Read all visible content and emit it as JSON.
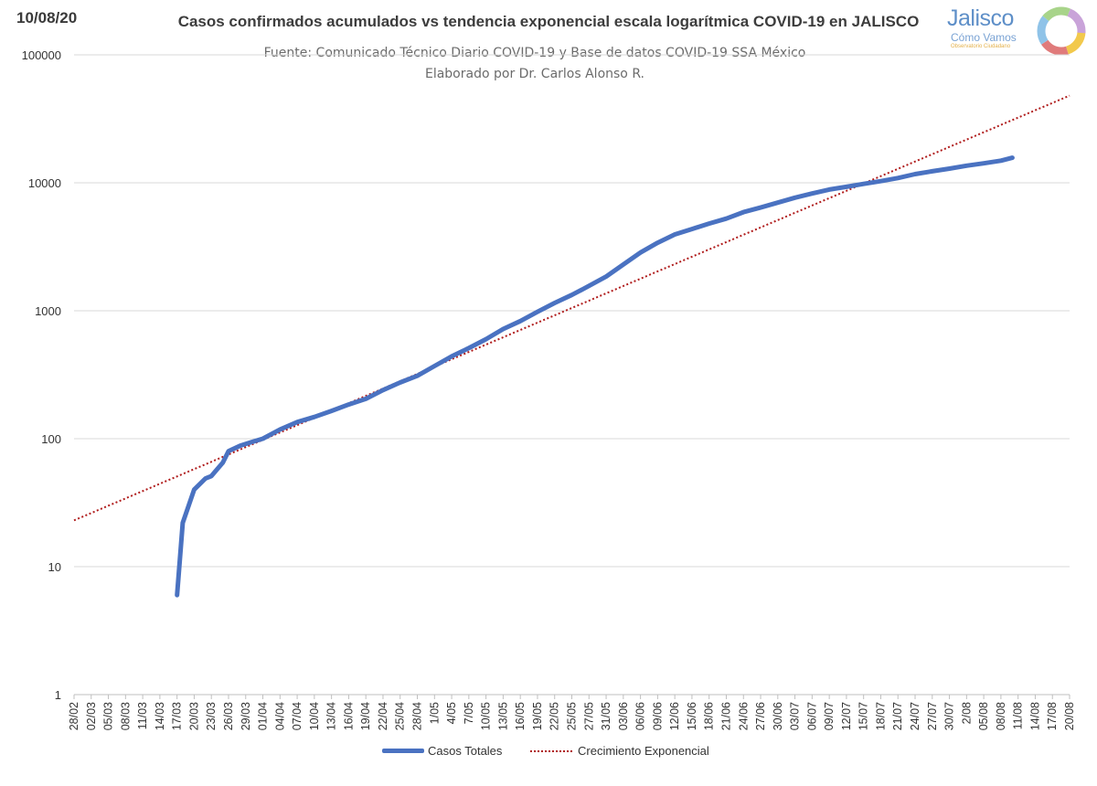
{
  "header": {
    "date": "10/08/20",
    "title": "Casos confirmados acumulados vs tendencia exponencial escala logarítmica COVID-19 en JALISCO",
    "subtitle_line1": "Fuente: Comunicado Técnico Diario COVID-19 y Base de datos COVID-19 SSA México",
    "subtitle_line2": "Elaborado por Dr. Carlos Alonso R."
  },
  "logo": {
    "name": "Jalisco",
    "tagline": "Cómo Vamos",
    "subline": "Observatorio Ciudadano"
  },
  "chart_data": {
    "type": "line",
    "yscale": "log",
    "ylim": [
      1,
      100000
    ],
    "yticks": [
      1,
      10,
      100,
      1000,
      10000,
      100000
    ],
    "ytick_labels": [
      "1",
      "10",
      "100",
      "1000",
      "10000",
      "100000"
    ],
    "grid": true,
    "legend_position": "bottom",
    "x_ticks": [
      "28/02",
      "02/03",
      "05/03",
      "08/03",
      "11/03",
      "14/03",
      "17/03",
      "20/03",
      "23/03",
      "26/03",
      "29/03",
      "01/04",
      "04/04",
      "07/04",
      "10/04",
      "13/04",
      "16/04",
      "19/04",
      "22/04",
      "25/04",
      "28/04",
      "1/05",
      "4/05",
      "7/05",
      "10/05",
      "13/05",
      "16/05",
      "19/05",
      "22/05",
      "25/05",
      "27/05",
      "31/05",
      "03/06",
      "06/06",
      "09/06",
      "12/06",
      "15/06",
      "18/06",
      "21/06",
      "24/06",
      "27/06",
      "30/06",
      "03/07",
      "06/07",
      "09/07",
      "12/07",
      "15/07",
      "18/07",
      "21/07",
      "24/07",
      "27/07",
      "30/07",
      "2/08",
      "05/08",
      "08/08",
      "11/08",
      "14/08",
      "17/08",
      "20/08"
    ],
    "series": [
      {
        "name": "Casos Totales",
        "color": "#4a72c1",
        "style": "solid",
        "x": [
          "17/03",
          "18/03",
          "20/03",
          "22/03",
          "23/03",
          "25/03",
          "26/03",
          "28/03",
          "30/03",
          "01/04",
          "04/04",
          "07/04",
          "10/04",
          "13/04",
          "16/04",
          "19/04",
          "22/04",
          "25/04",
          "28/04",
          "1/05",
          "4/05",
          "7/05",
          "10/05",
          "13/05",
          "16/05",
          "19/05",
          "22/05",
          "25/05",
          "27/05",
          "31/05",
          "03/06",
          "06/06",
          "09/06",
          "12/06",
          "15/06",
          "18/06",
          "21/06",
          "24/06",
          "27/06",
          "30/06",
          "03/07",
          "06/07",
          "09/07",
          "12/07",
          "15/07",
          "18/07",
          "21/07",
          "24/07",
          "27/07",
          "30/07",
          "2/08",
          "05/08",
          "08/08",
          "10/08"
        ],
        "y": [
          6,
          22,
          40,
          49,
          51,
          65,
          80,
          88,
          94,
          100,
          118,
          135,
          148,
          165,
          185,
          205,
          240,
          275,
          310,
          370,
          440,
          510,
          600,
          720,
          830,
          980,
          1150,
          1330,
          1480,
          1850,
          2300,
          2850,
          3400,
          3950,
          4350,
          4800,
          5250,
          5900,
          6400,
          7000,
          7650,
          8250,
          8850,
          9300,
          9800,
          10300,
          10900,
          11700,
          12300,
          12900,
          13600,
          14200,
          14900,
          15700
        ]
      },
      {
        "name": "Crecimiento Exponencial",
        "color": "#b01c1c",
        "style": "dotted",
        "x": [
          "28/02",
          "20/08"
        ],
        "y": [
          23,
          48000
        ]
      }
    ]
  }
}
